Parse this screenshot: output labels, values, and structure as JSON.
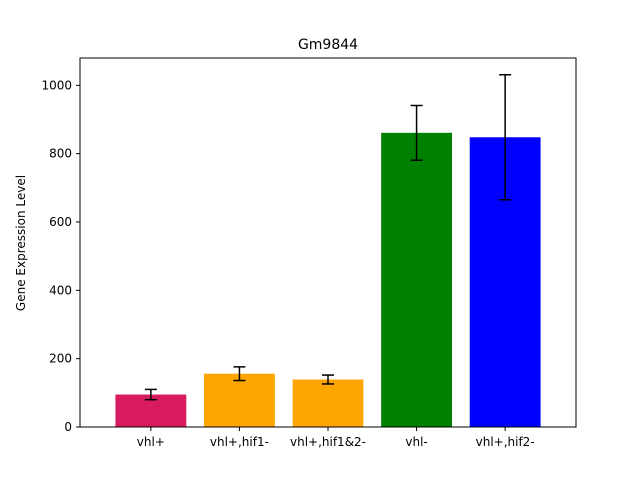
{
  "chart_data": {
    "type": "bar",
    "title": "Gm9844",
    "xlabel": "",
    "ylabel": "Gene Expression Level",
    "categories": [
      "vhl+",
      "vhl+,hif1-",
      "vhl+,hif1&2-",
      "vhl-",
      "vhl+,hif2-"
    ],
    "values": [
      95,
      156,
      139,
      861,
      848
    ],
    "errors": [
      15,
      20,
      13,
      80,
      183
    ],
    "colors": [
      "#d81b60",
      "#ffa500",
      "#ffa500",
      "#008000",
      "#0000ff"
    ],
    "ylim": [
      0,
      1080
    ],
    "yticks": [
      0,
      200,
      400,
      600,
      800,
      1000
    ],
    "grid": false,
    "legend": "none"
  }
}
